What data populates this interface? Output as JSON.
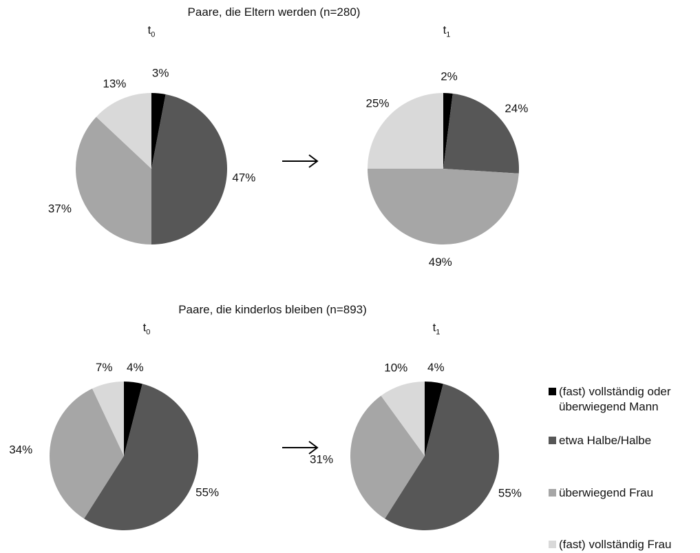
{
  "chart_data": [
    {
      "type": "pie",
      "group_title": "Paare, die Eltern werden (n=280)",
      "time_label": "t",
      "time_sub": "0",
      "slices": [
        {
          "category": "(fast) vollständig oder überwiegend Mann",
          "value": 3,
          "label": "3%",
          "color": "#000000"
        },
        {
          "category": "etwa Halbe/Halbe",
          "value": 47,
          "label": "47%",
          "color": "#575757"
        },
        {
          "category": "überwiegend Frau",
          "value": 37,
          "label": "37%",
          "color": "#a6a6a6"
        },
        {
          "category": "(fast) vollständig Frau",
          "value": 13,
          "label": "13%",
          "color": "#d9d9d9"
        }
      ]
    },
    {
      "type": "pie",
      "group_title": "",
      "time_label": "t",
      "time_sub": "1",
      "slices": [
        {
          "category": "(fast) vollständig oder überwiegend Mann",
          "value": 2,
          "label": "2%",
          "color": "#000000"
        },
        {
          "category": "etwa Halbe/Halbe",
          "value": 24,
          "label": "24%",
          "color": "#575757"
        },
        {
          "category": "überwiegend Frau",
          "value": 49,
          "label": "49%",
          "color": "#a6a6a6"
        },
        {
          "category": "(fast) vollständig Frau",
          "value": 25,
          "label": "25%",
          "color": "#d9d9d9"
        }
      ]
    },
    {
      "type": "pie",
      "group_title": "Paare, die kinderlos bleiben (n=893)",
      "time_label": "t",
      "time_sub": "0",
      "slices": [
        {
          "category": "(fast) vollständig oder überwiegend Mann",
          "value": 4,
          "label": "4%",
          "color": "#000000"
        },
        {
          "category": "etwa Halbe/Halbe",
          "value": 55,
          "label": "55%",
          "color": "#575757"
        },
        {
          "category": "überwiegend Frau",
          "value": 34,
          "label": "34%",
          "color": "#a6a6a6"
        },
        {
          "category": "(fast) vollständig Frau",
          "value": 7,
          "label": "7%",
          "color": "#d9d9d9"
        }
      ]
    },
    {
      "type": "pie",
      "group_title": "",
      "time_label": "t",
      "time_sub": "1",
      "slices": [
        {
          "category": "(fast) vollständig oder überwiegend Mann",
          "value": 4,
          "label": "4%",
          "color": "#000000"
        },
        {
          "category": "etwa Halbe/Halbe",
          "value": 55,
          "label": "55%",
          "color": "#575757"
        },
        {
          "category": "überwiegend Frau",
          "value": 31,
          "label": "31%",
          "color": "#a6a6a6"
        },
        {
          "category": "(fast) vollständig Frau",
          "value": 10,
          "label": "10%",
          "color": "#d9d9d9"
        }
      ]
    }
  ],
  "legend": [
    {
      "label": "(fast) vollständig oder überwiegend Mann",
      "color": "#000000"
    },
    {
      "label": "etwa Halbe/Halbe",
      "color": "#575757"
    },
    {
      "label": "überwiegend Frau",
      "color": "#a6a6a6"
    },
    {
      "label": "(fast) vollständig Frau",
      "color": "#d9d9d9"
    }
  ]
}
